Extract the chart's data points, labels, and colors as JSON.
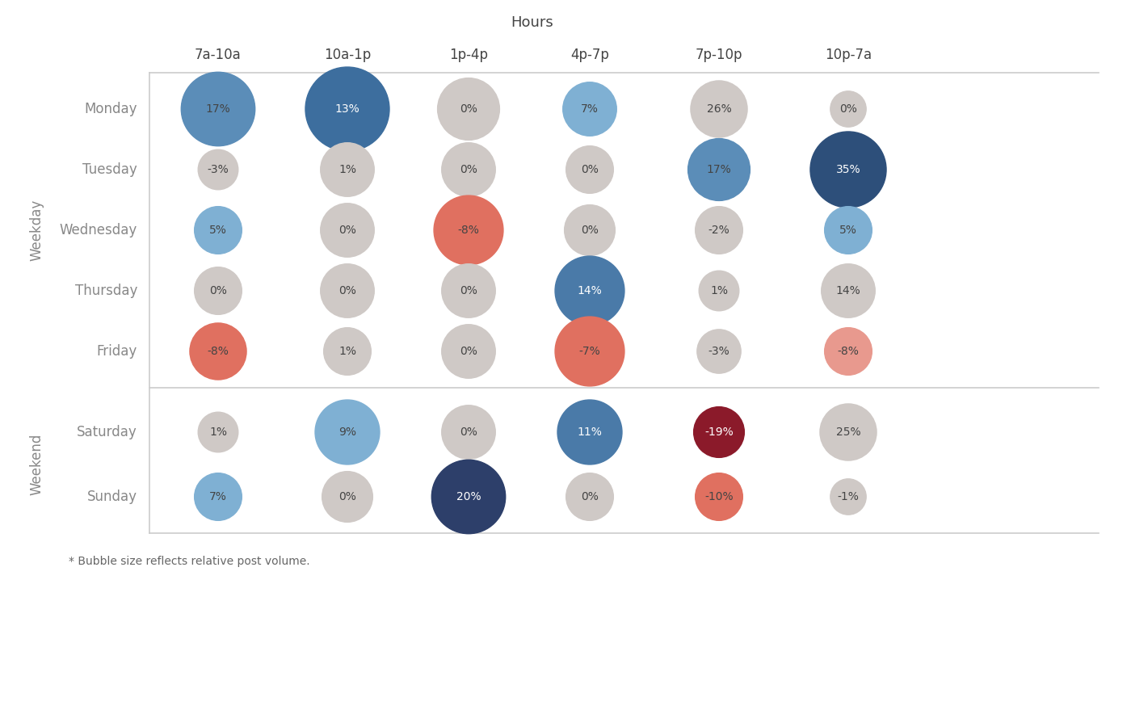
{
  "title": "Hours",
  "ylabel_weekday": "Weekday",
  "ylabel_weekend": "Weekend",
  "columns": [
    "7a-10a",
    "10a-1p",
    "1p-4p",
    "4p-7p",
    "7p-10p",
    "10p-7a"
  ],
  "rows": [
    "Monday",
    "Tuesday",
    "Wednesday",
    "Thursday",
    "Friday",
    "Saturday",
    "Sunday"
  ],
  "footnote": "* Bubble size reflects relative post volume.",
  "values": [
    [
      17,
      13,
      0,
      7,
      26,
      0
    ],
    [
      -3,
      1,
      0,
      0,
      17,
      35
    ],
    [
      5,
      0,
      -8,
      0,
      -2,
      5
    ],
    [
      0,
      0,
      0,
      14,
      1,
      14
    ],
    [
      -8,
      1,
      0,
      -7,
      -3,
      -8
    ],
    [
      1,
      9,
      0,
      11,
      -19,
      25
    ],
    [
      7,
      0,
      20,
      0,
      -10,
      -1
    ]
  ],
  "bubble_sizes": [
    [
      1700,
      2200,
      1200,
      900,
      1000,
      400
    ],
    [
      500,
      900,
      900,
      700,
      1200,
      1800
    ],
    [
      700,
      900,
      1500,
      800,
      700,
      700
    ],
    [
      700,
      900,
      900,
      1500,
      500,
      900
    ],
    [
      1000,
      700,
      900,
      1500,
      600,
      700
    ],
    [
      500,
      1300,
      900,
      1300,
      800,
      1000
    ],
    [
      700,
      800,
      1700,
      700,
      700,
      400
    ]
  ],
  "colors": [
    [
      "#5b8db8",
      "#3d6e9e",
      "#cfc9c6",
      "#7fb0d3",
      "#cfc9c6",
      "#cfc9c6"
    ],
    [
      "#cfc9c6",
      "#cfc9c6",
      "#cfc9c6",
      "#cfc9c6",
      "#5b8db8",
      "#2d4f7a"
    ],
    [
      "#7fb0d3",
      "#cfc9c6",
      "#e07060",
      "#cfc9c6",
      "#cfc9c6",
      "#7fb0d3"
    ],
    [
      "#cfc9c6",
      "#cfc9c6",
      "#cfc9c6",
      "#4a7aa8",
      "#cfc9c6",
      "#cfc9c6"
    ],
    [
      "#e07060",
      "#cfc9c6",
      "#cfc9c6",
      "#e07060",
      "#cfc9c6",
      "#e8998e"
    ],
    [
      "#cfc9c6",
      "#7fb0d3",
      "#cfc9c6",
      "#4a7aa8",
      "#8b1a2a",
      "#cfc9c6"
    ],
    [
      "#7fb0d3",
      "#cfc9c6",
      "#2d3f6a",
      "#cfc9c6",
      "#e07060",
      "#cfc9c6"
    ]
  ],
  "background_color": "#ffffff",
  "grid_color": "#cccccc",
  "row_label_color": "#888888",
  "col_label_color": "#444444",
  "axis_label_color": "#888888",
  "title_fontsize": 13,
  "col_fontsize": 12,
  "row_fontsize": 12,
  "bubble_label_fontsize": 10,
  "axis_label_fontsize": 12,
  "footnote_fontsize": 10
}
